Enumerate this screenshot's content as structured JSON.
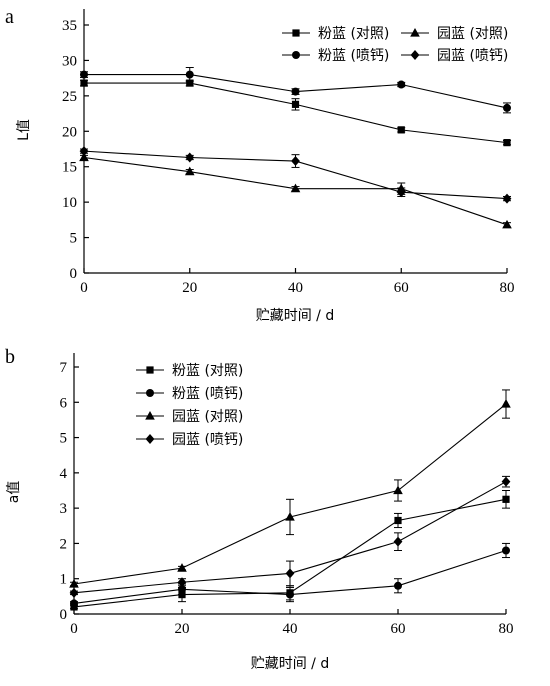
{
  "chart_data": [
    {
      "panel": "a",
      "type": "line",
      "xlabel": "贮藏时间 / d",
      "ylabel": "L值",
      "x": [
        0,
        20,
        40,
        60,
        80
      ],
      "xlim": [
        0,
        80
      ],
      "ylim": [
        0,
        35
      ],
      "xticks": [
        "0",
        "20",
        "40",
        "60",
        "80"
      ],
      "yticks": [
        "0",
        "5",
        "10",
        "15",
        "20",
        "25",
        "30",
        "35"
      ],
      "legend": "top-right",
      "series": [
        {
          "name": "粉蓝 (对照)",
          "marker": "square",
          "values": [
            26.8,
            26.8,
            23.8,
            20.2,
            18.4
          ],
          "errors": [
            0.4,
            0.4,
            0.8,
            0.3,
            0.3
          ]
        },
        {
          "name": "园蓝 (对照)",
          "marker": "triangle",
          "values": [
            16.3,
            14.3,
            11.9,
            11.9,
            6.8
          ],
          "errors": [
            0.3,
            0.3,
            0.3,
            0.8,
            0.3
          ]
        },
        {
          "name": "粉蓝 (喷钙)",
          "marker": "circle",
          "values": [
            28.0,
            28.0,
            25.6,
            26.6,
            23.3
          ],
          "errors": [
            0.4,
            1.0,
            0.4,
            0.3,
            0.7
          ]
        },
        {
          "name": "园蓝 (喷钙)",
          "marker": "diamond",
          "values": [
            17.2,
            16.3,
            15.8,
            11.4,
            10.5
          ],
          "errors": [
            0.3,
            0.3,
            0.9,
            0.6,
            0.3
          ]
        }
      ]
    },
    {
      "panel": "b",
      "type": "line",
      "xlabel": "贮藏时间 / d",
      "ylabel": "a值",
      "x": [
        0,
        20,
        40,
        60,
        80
      ],
      "xlim": [
        0,
        80
      ],
      "ylim": [
        0,
        7
      ],
      "xticks": [
        "0",
        "20",
        "40",
        "60",
        "80"
      ],
      "yticks": [
        "0",
        "1",
        "2",
        "3",
        "4",
        "5",
        "6",
        "7"
      ],
      "legend": "top-left",
      "series": [
        {
          "name": "粉蓝 (对照)",
          "marker": "square",
          "values": [
            0.2,
            0.55,
            0.6,
            2.65,
            3.25
          ],
          "errors": [
            0.05,
            0.2,
            0.2,
            0.2,
            0.25
          ]
        },
        {
          "name": "粉蓝 (喷钙)",
          "marker": "circle",
          "values": [
            0.3,
            0.7,
            0.55,
            0.8,
            1.8
          ],
          "errors": [
            0.05,
            0.15,
            0.2,
            0.2,
            0.2
          ]
        },
        {
          "name": "园蓝 (对照)",
          "marker": "triangle",
          "values": [
            0.85,
            1.3,
            2.75,
            3.5,
            5.95
          ],
          "errors": [
            0.05,
            0.05,
            0.5,
            0.3,
            0.4
          ]
        },
        {
          "name": "园蓝 (喷钙)",
          "marker": "diamond",
          "values": [
            0.6,
            0.9,
            1.15,
            2.05,
            3.75
          ],
          "errors": [
            0.05,
            0.1,
            0.35,
            0.25,
            0.15
          ]
        }
      ]
    }
  ]
}
